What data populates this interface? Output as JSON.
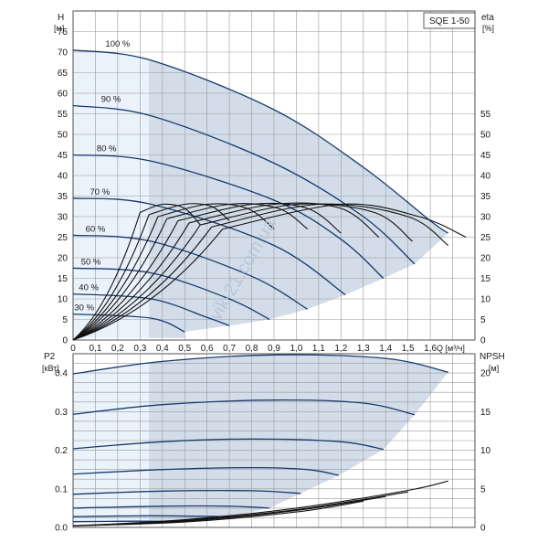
{
  "chart_data": [
    {
      "type": "line",
      "title": "SQE 1-50",
      "xlabel": "Q [м³/ч]",
      "x_ticks": [
        "0",
        "0,1",
        "0,2",
        "0,3",
        "0,4",
        "0,5",
        "0,6",
        "0,7",
        "0,8",
        "0,9",
        "1,0",
        "1,1",
        "1,2",
        "1,3",
        "1,4",
        "1,5",
        "1,6"
      ],
      "left_axis": {
        "name": "H",
        "unit": "[м]",
        "ticks": [
          "0",
          "5",
          "10",
          "15",
          "20",
          "25",
          "30",
          "35",
          "40",
          "45",
          "50",
          "55",
          "60",
          "65",
          "70",
          "75"
        ],
        "ylim": [
          0,
          80
        ]
      },
      "right_axis": {
        "name": "eta",
        "unit": "[%]",
        "ticks": [
          "0",
          "5",
          "10",
          "15",
          "20",
          "25",
          "30",
          "35",
          "40",
          "45",
          "50",
          "55"
        ],
        "ylim": [
          0,
          80
        ]
      },
      "xlim": [
        0,
        1.8
      ],
      "series": [
        {
          "name": "100 %",
          "x": [
            0,
            0.35,
            0.9,
            1.3,
            1.6,
            1.68
          ],
          "y": [
            70.5,
            68,
            56,
            42,
            29,
            26
          ]
        },
        {
          "name": "90 %",
          "x": [
            0,
            0.35,
            0.9,
            1.3,
            1.53
          ],
          "y": [
            57,
            54.5,
            43,
            30,
            18.5
          ]
        },
        {
          "name": "80 %",
          "x": [
            0,
            0.35,
            0.9,
            1.2,
            1.39
          ],
          "y": [
            45,
            43.5,
            34,
            24.5,
            15
          ]
        },
        {
          "name": "70 %",
          "x": [
            0,
            0.35,
            0.9,
            1.22
          ],
          "y": [
            34.5,
            33,
            23,
            11
          ]
        },
        {
          "name": "60 %",
          "x": [
            0,
            0.35,
            0.8,
            1.05
          ],
          "y": [
            25.5,
            24,
            15.5,
            7.5
          ]
        },
        {
          "name": "50 %",
          "x": [
            0,
            0.35,
            0.7,
            0.88
          ],
          "y": [
            17.5,
            16.3,
            10,
            5
          ]
        },
        {
          "name": "40 %",
          "x": [
            0,
            0.35,
            0.6,
            0.7
          ],
          "y": [
            11.2,
            10,
            5.5,
            3.5
          ]
        },
        {
          "name": "30 %",
          "x": [
            0,
            0.35,
            0.5
          ],
          "y": [
            6.3,
            5.3,
            2
          ]
        }
      ],
      "efficiency_curves": [
        {
          "x": [
            0.3,
            0.4,
            0.5,
            0.57
          ],
          "y": [
            31,
            33,
            32,
            28
          ]
        },
        {
          "x": [
            0.34,
            0.5,
            0.62,
            0.7
          ],
          "y": [
            30.5,
            33,
            32.5,
            29
          ]
        },
        {
          "x": [
            0.38,
            0.6,
            0.78,
            0.9
          ],
          "y": [
            30,
            33,
            32,
            27
          ]
        },
        {
          "x": [
            0.42,
            0.7,
            0.92,
            1.05
          ],
          "y": [
            29.5,
            33,
            32,
            27
          ]
        },
        {
          "x": [
            0.47,
            0.8,
            1.05,
            1.2
          ],
          "y": [
            29,
            33,
            32,
            26
          ]
        },
        {
          "x": [
            0.52,
            0.9,
            1.2,
            1.37
          ],
          "y": [
            28.5,
            33,
            32,
            25
          ]
        },
        {
          "x": [
            0.57,
            1.0,
            1.35,
            1.52
          ],
          "y": [
            28,
            33,
            31,
            24
          ]
        },
        {
          "x": [
            0.62,
            1.1,
            1.5,
            1.68
          ],
          "y": [
            27.5,
            33,
            30,
            23
          ]
        },
        {
          "x": [
            0.67,
            1.2,
            1.55,
            1.76
          ],
          "y": [
            27,
            33,
            30,
            25
          ]
        }
      ],
      "colors": {
        "area": "#d2dde9",
        "area_light": "#eaf2fb",
        "curve": "#173a6e"
      },
      "grid": true
    },
    {
      "type": "line",
      "left_axis": {
        "name": "P2",
        "unit": "[кВт]",
        "ticks": [
          "0.0",
          "0.1",
          "0.2",
          "0.3",
          "0.4"
        ],
        "ylim": [
          0,
          0.45
        ]
      },
      "right_axis": {
        "name": "NPSH",
        "unit": "[м]",
        "ticks": [
          "0",
          "5",
          "10",
          "15",
          "20"
        ],
        "ylim": [
          0,
          22.5
        ]
      },
      "xlim": [
        0,
        1.8
      ],
      "series": [
        {
          "name": "100 %",
          "x": [
            0,
            0.4,
            0.9,
            1.4,
            1.68
          ],
          "y": [
            0.398,
            0.43,
            0.447,
            0.438,
            0.402
          ]
        },
        {
          "name": "90 %",
          "x": [
            0,
            0.4,
            0.9,
            1.3,
            1.53
          ],
          "y": [
            0.293,
            0.318,
            0.33,
            0.322,
            0.292
          ]
        },
        {
          "name": "80 %",
          "x": [
            0,
            0.4,
            0.8,
            1.2,
            1.39
          ],
          "y": [
            0.204,
            0.222,
            0.229,
            0.222,
            0.202
          ]
        },
        {
          "name": "70 %",
          "x": [
            0,
            0.4,
            0.8,
            1.05,
            1.19
          ],
          "y": [
            0.138,
            0.15,
            0.155,
            0.15,
            0.135
          ]
        },
        {
          "name": "60 %",
          "x": [
            0,
            0.4,
            0.8,
            1.02
          ],
          "y": [
            0.086,
            0.094,
            0.095,
            0.088
          ]
        },
        {
          "name": "50 %",
          "x": [
            0,
            0.4,
            0.7,
            0.88
          ],
          "y": [
            0.05,
            0.055,
            0.055,
            0.05
          ]
        },
        {
          "name": "40 %",
          "x": [
            0,
            0.35,
            0.7
          ],
          "y": [
            0.028,
            0.03,
            0.028
          ]
        },
        {
          "name": "30 %",
          "x": [
            0,
            0.3,
            0.5
          ],
          "y": [
            0.015,
            0.016,
            0.015
          ]
        }
      ],
      "npsh_curves": [
        {
          "x": [
            0,
            0.5,
            1.0,
            1.5,
            1.68
          ],
          "y": [
            0.2,
            1.0,
            2.5,
            4.8,
            6.0
          ]
        },
        {
          "x": [
            0,
            0.5,
            1.0,
            1.5
          ],
          "y": [
            0.2,
            0.9,
            2.3,
            4.6
          ]
        },
        {
          "x": [
            0,
            0.5,
            1.0,
            1.4
          ],
          "y": [
            0.2,
            0.8,
            2.2,
            4.0
          ]
        },
        {
          "x": [
            0,
            0.5,
            1.0,
            1.3
          ],
          "y": [
            0.2,
            0.7,
            2.0,
            3.4
          ]
        }
      ],
      "grid": true
    }
  ],
  "watermark": "vik-21.com.ua"
}
